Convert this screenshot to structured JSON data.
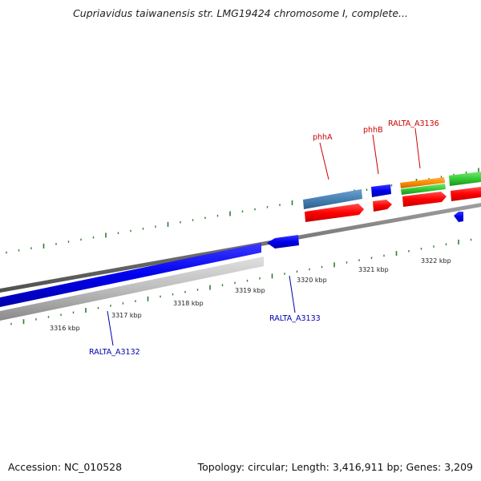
{
  "title": "Cupriavidus taiwanensis str. LMG19424 chromosome I, complete...",
  "footer": {
    "accession": "Accession: NC_010528",
    "summary": "Topology: circular; Length: 3,416,911 bp; Genes: 3,209"
  },
  "scale_labels": [
    "3316 kbp",
    "3317 kbp",
    "3318 kbp",
    "3319 kbp",
    "3320 kbp",
    "3321 kbp",
    "3322 kbp"
  ],
  "gene_labels": {
    "phhA": "phhA",
    "phhB": "phhB",
    "ralta_a3136": "RALTA_A3136",
    "ralta_a3133": "RALTA_A3133",
    "ralta_a3132": "RALTA_A3132"
  },
  "colors": {
    "backbone": "#808080",
    "forward_gene": "#0000ee",
    "cds_red": "#ff0000",
    "steelblue": "#4682b4",
    "orange": "#ff8c00",
    "green": "#32cd32",
    "gray_feature": "#bdbdbd",
    "tick_green": "#2e7d32",
    "label_red": "#cc0000",
    "label_blue": "#0000aa"
  }
}
